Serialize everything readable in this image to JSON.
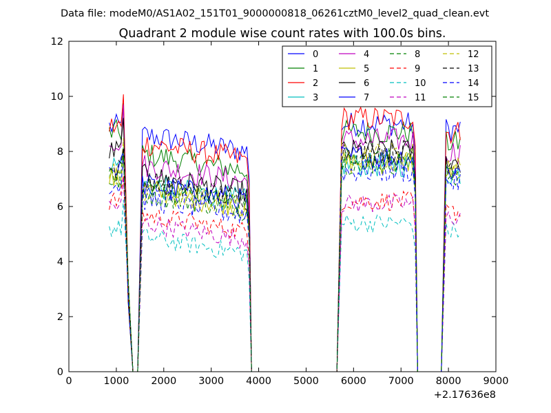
{
  "chart_data": {
    "type": "line",
    "suptitle": "Data file: modeM0/AS1A02_151T01_9000000818_06261cztM0_level2_quad_clean.evt",
    "title": "Quadrant 2 module wise count rates with 100.0s bins.",
    "xlabel": "",
    "ylabel": "",
    "x_offset_label": "+2.17636e8",
    "xlim": [
      0,
      9000
    ],
    "ylim": [
      0,
      12
    ],
    "xticks": [
      0,
      1000,
      2000,
      3000,
      4000,
      5000,
      6000,
      7000,
      8000,
      9000
    ],
    "yticks": [
      0,
      2,
      4,
      6,
      8,
      10,
      12
    ],
    "legend_position": "top-right",
    "segments": [
      {
        "x_start": 850,
        "x_end": 1150
      },
      {
        "x_start": 1550,
        "x_end": 3750
      },
      {
        "x_start": 5750,
        "x_end": 7250
      },
      {
        "x_start": 7950,
        "x_end": 8250
      }
    ],
    "gap_points": [
      [
        1250,
        3.0
      ],
      [
        1350,
        0
      ],
      [
        1450,
        0
      ],
      [
        3850,
        0
      ],
      [
        3950,
        0
      ],
      [
        5650,
        0
      ],
      [
        7350,
        0
      ],
      [
        7450,
        0
      ],
      [
        7550,
        0
      ],
      [
        7650,
        0
      ],
      [
        7750,
        0
      ],
      [
        7850,
        0
      ]
    ],
    "series": [
      {
        "name": "0",
        "color": "#0000ff",
        "dash": "solid",
        "levels": [
          8.9,
          8.6,
          9.0,
          8.8
        ]
      },
      {
        "name": "1",
        "color": "#008000",
        "dash": "solid",
        "levels": [
          8.7,
          7.9,
          8.7,
          8.3
        ]
      },
      {
        "name": "2",
        "color": "#ff0000",
        "dash": "solid",
        "levels": [
          8.9,
          8.3,
          9.2,
          8.7
        ]
      },
      {
        "name": "3",
        "color": "#00bfbf",
        "dash": "solid",
        "levels": [
          7.5,
          6.8,
          7.5,
          7.2
        ]
      },
      {
        "name": "4",
        "color": "#bf00bf",
        "dash": "solid",
        "levels": [
          8.4,
          7.5,
          8.4,
          8.0
        ]
      },
      {
        "name": "5",
        "color": "#bfbf00",
        "dash": "solid",
        "levels": [
          7.0,
          6.6,
          7.6,
          7.4
        ]
      },
      {
        "name": "6",
        "color": "#000000",
        "dash": "solid",
        "levels": [
          8.0,
          7.1,
          8.0,
          7.6
        ]
      },
      {
        "name": "7",
        "color": "#0000ff",
        "dash": "solid",
        "levels": [
          7.4,
          6.8,
          7.8,
          7.3
        ]
      },
      {
        "name": "8",
        "color": "#008000",
        "dash": "dashed",
        "levels": [
          7.0,
          6.5,
          7.6,
          7.1
        ]
      },
      {
        "name": "9",
        "color": "#ff0000",
        "dash": "dashed",
        "levels": [
          6.2,
          5.7,
          6.2,
          5.8
        ]
      },
      {
        "name": "10",
        "color": "#00bfbf",
        "dash": "dashed",
        "levels": [
          5.2,
          4.9,
          5.4,
          5.1
        ]
      },
      {
        "name": "11",
        "color": "#bf00bf",
        "dash": "dashed",
        "levels": [
          6.0,
          5.4,
          6.1,
          5.6
        ]
      },
      {
        "name": "12",
        "color": "#bfbf00",
        "dash": "dashed",
        "levels": [
          7.2,
          6.6,
          7.9,
          7.4
        ]
      },
      {
        "name": "13",
        "color": "#000000",
        "dash": "dashed",
        "levels": [
          7.3,
          6.9,
          8.0,
          7.5
        ]
      },
      {
        "name": "14",
        "color": "#0000ff",
        "dash": "dashed",
        "levels": [
          6.8,
          6.3,
          7.3,
          6.9
        ]
      },
      {
        "name": "15",
        "color": "#008000",
        "dash": "dashed",
        "levels": [
          7.1,
          6.7,
          7.7,
          7.2
        ]
      }
    ]
  }
}
